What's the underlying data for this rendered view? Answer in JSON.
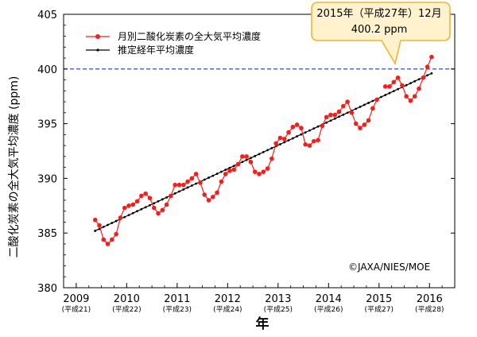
{
  "chart_data": {
    "type": "line",
    "xlabel": "年",
    "ylabel": "二酸化炭素の全大気平均濃度 (ppm)",
    "ylim": [
      380,
      405
    ],
    "yticks": [
      380,
      385,
      390,
      395,
      400,
      405
    ],
    "xlim": [
      2008.75,
      2016.5
    ],
    "x_ticks": [
      {
        "year": "2009",
        "era": "(平成21)"
      },
      {
        "year": "2010",
        "era": "(平成22)"
      },
      {
        "year": "2011",
        "era": "(平成23)"
      },
      {
        "year": "2012",
        "era": "(平成24)"
      },
      {
        "year": "2013",
        "era": "(平成25)"
      },
      {
        "year": "2014",
        "era": "(平成26)"
      },
      {
        "year": "2015",
        "era": "(平成27)"
      },
      {
        "year": "2016",
        "era": "(平成28)"
      }
    ],
    "reference_line": {
      "y": 400,
      "color": "#1f35c8",
      "style": "dashed"
    },
    "legend_position": "top-left",
    "series": [
      {
        "name": "月別二酸化炭素の全大気平均濃度",
        "color": "#ff1a1a",
        "marker": "circle",
        "start": "2009-05",
        "values": [
          386.2,
          385.7,
          384.4,
          384.0,
          384.4,
          384.9,
          386.4,
          387.3,
          387.5,
          387.6,
          387.9,
          388.4,
          388.6,
          388.2,
          387.3,
          386.8,
          387.1,
          387.6,
          388.4,
          389.4,
          389.4,
          389.4,
          389.7,
          390.0,
          390.4,
          389.6,
          388.5,
          388.0,
          388.3,
          388.7,
          389.7,
          390.4,
          390.7,
          390.8,
          391.3,
          392.0,
          392.0,
          391.5,
          390.6,
          390.4,
          390.6,
          390.9,
          391.8,
          393.2,
          393.7,
          393.6,
          394.2,
          394.7,
          394.9,
          394.6,
          393.1,
          393.0,
          393.4,
          393.5,
          394.8,
          395.6,
          395.8,
          395.8,
          396.1,
          396.6,
          397.0,
          396.0,
          395.0,
          394.6,
          394.9,
          395.3,
          396.4,
          397.2,
          null,
          398.4,
          398.4,
          398.8,
          399.2,
          398.5,
          397.5,
          397.1,
          397.5,
          398.2,
          399.2,
          400.2,
          401.1
        ]
      },
      {
        "name": "推定経年平均濃度",
        "color": "#000000",
        "marker": "dot",
        "start": "2009-05",
        "end": "2016-01",
        "y_start": 385.2,
        "y_end": 399.6
      }
    ],
    "annotation": {
      "line1": "2015年（平成27年）12月",
      "line2": "400.2 ppm",
      "fill": "#fff2cc",
      "stroke": "#f2b531"
    },
    "credit": "©JAXA/NIES/MOE"
  }
}
